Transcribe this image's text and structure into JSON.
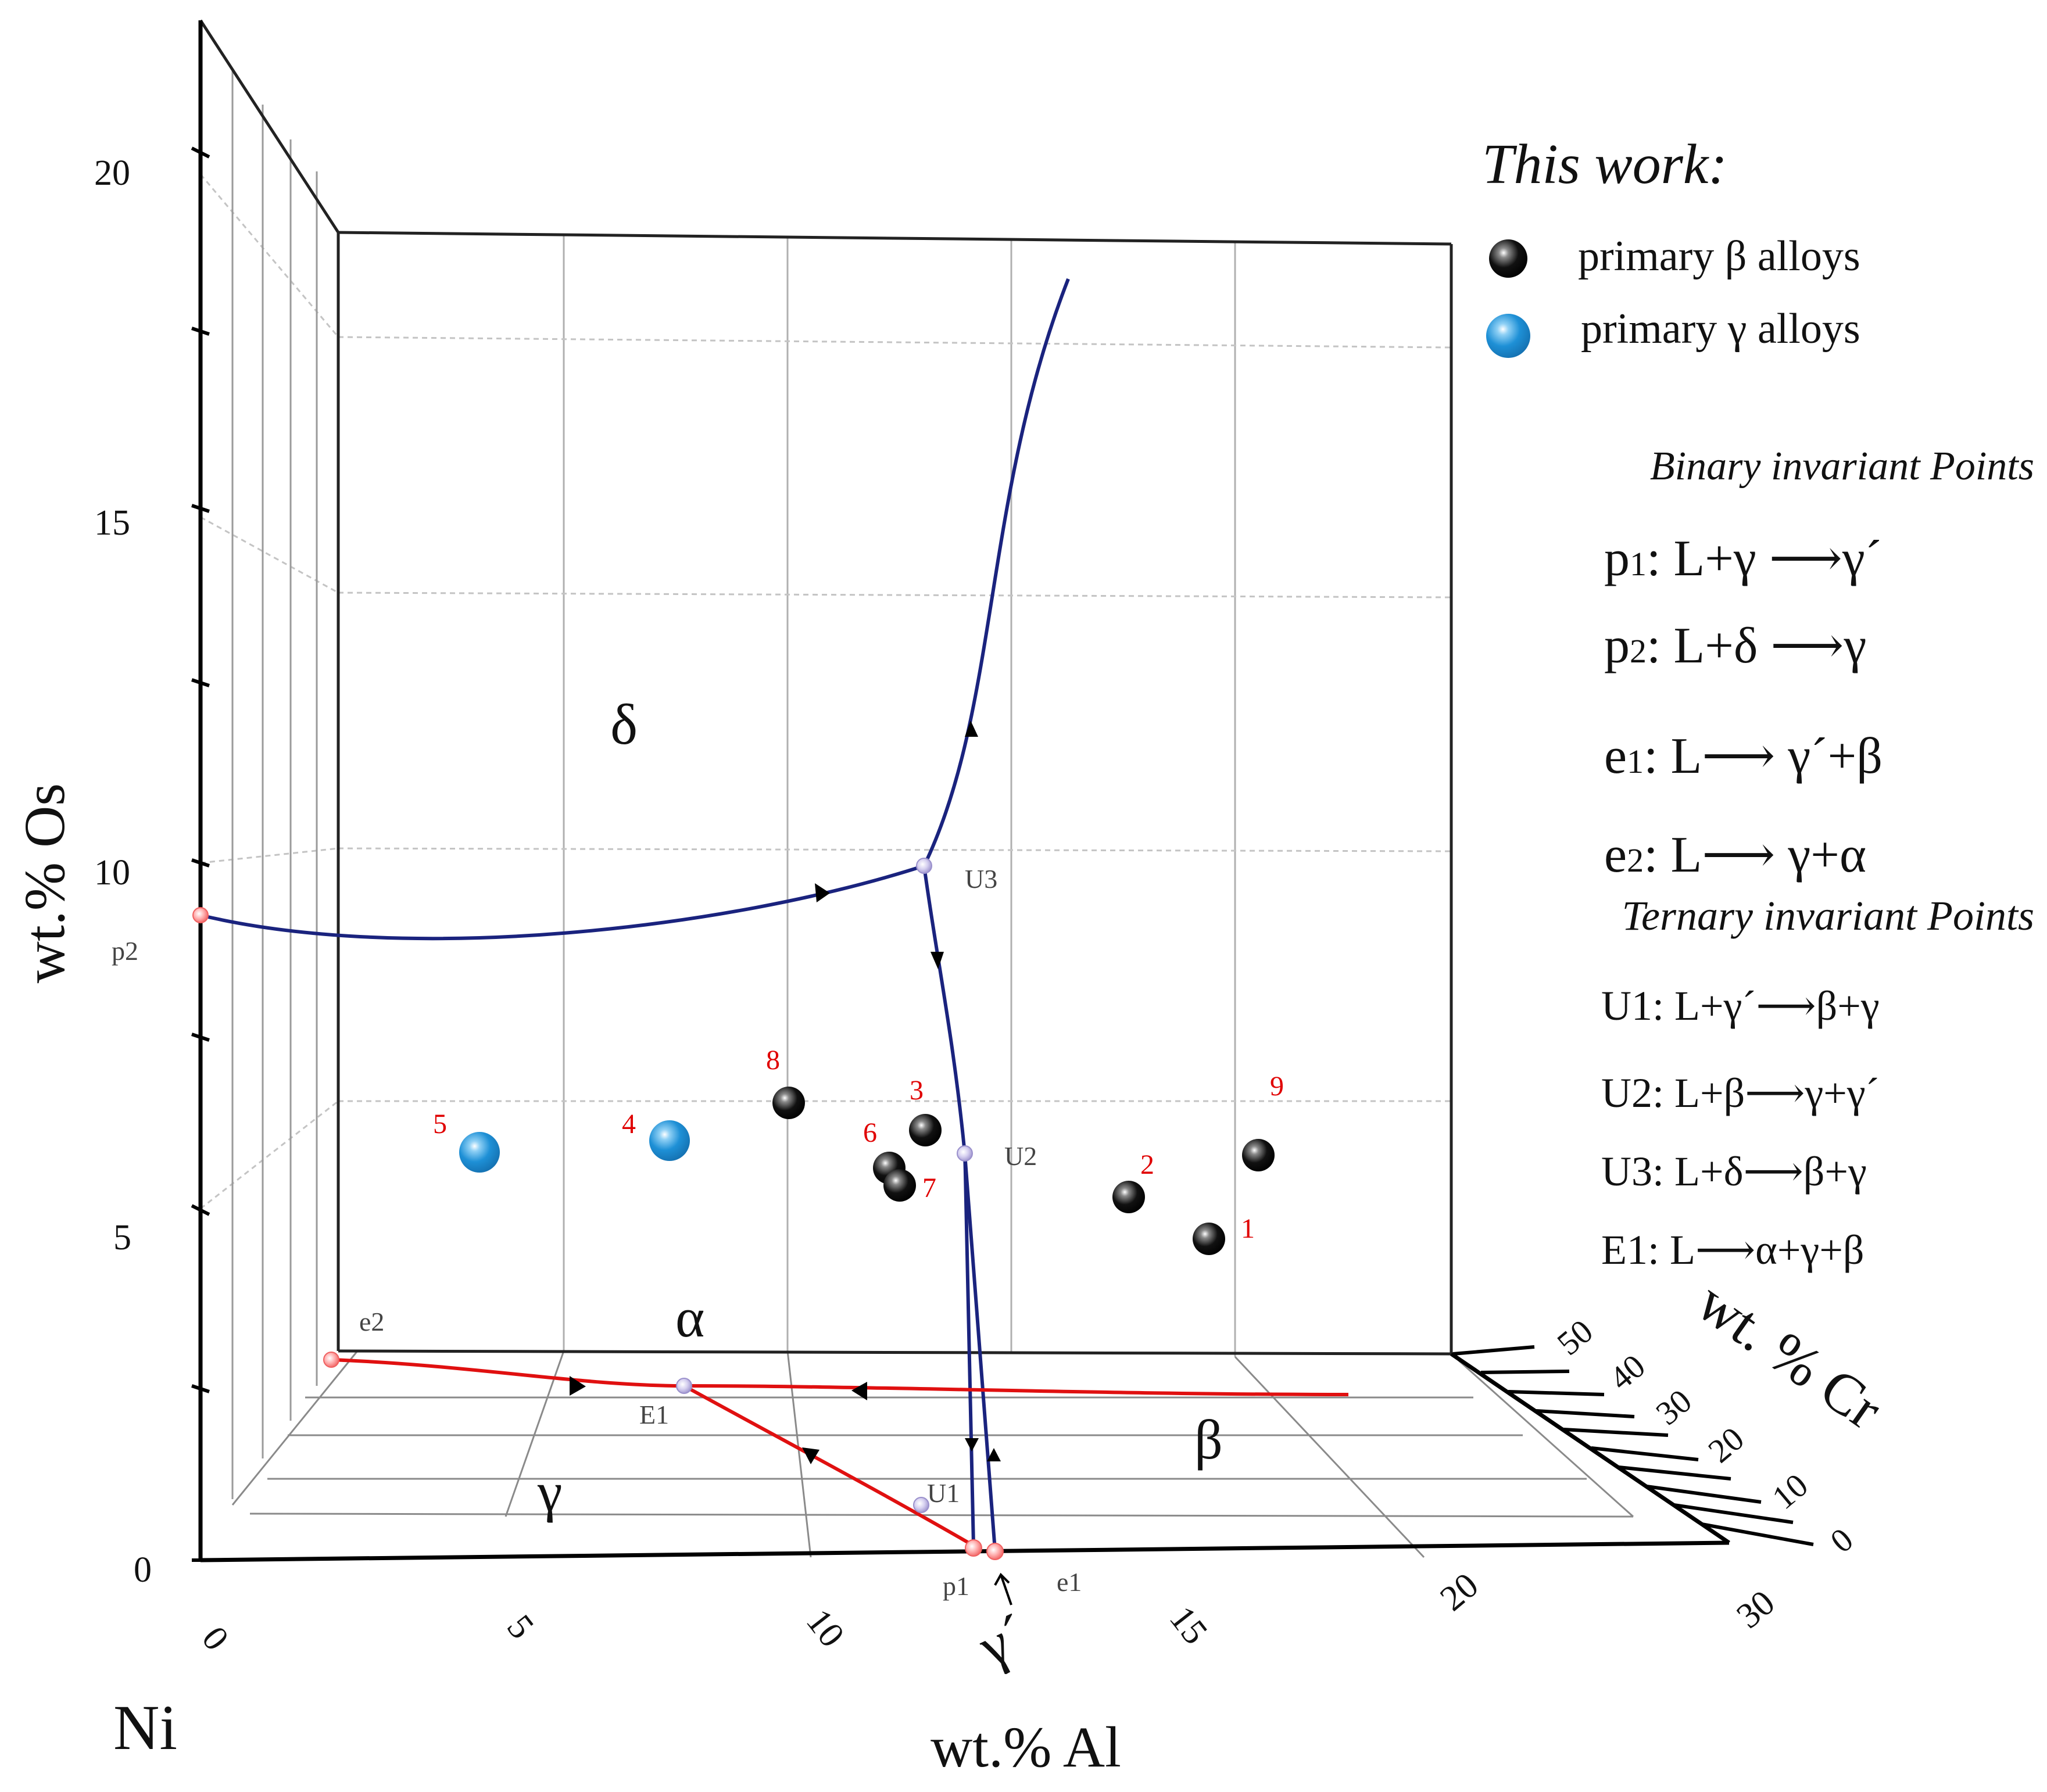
{
  "colors": {
    "axis": "#000000",
    "grid": "#9a9a9a",
    "dash": "#bdbdbd",
    "blue_curve": "#1a237e",
    "red_curve": "#e01010",
    "label_red": "#e00000",
    "label_gray": "#444444",
    "beta_sphere": "#000000",
    "gamma_sphere": "#1e90d6",
    "point_red": "#ff8080",
    "point_lavender": "#b8b0e0"
  },
  "axes": {
    "os": {
      "label": "wt.% Os",
      "ticks": [
        {
          "value": 0,
          "label": "0"
        },
        {
          "value": 5,
          "label": "5"
        },
        {
          "value": 10,
          "label": "10"
        },
        {
          "value": 15,
          "label": "15"
        },
        {
          "value": 20,
          "label": "20"
        }
      ]
    },
    "al": {
      "label": "wt.% Al",
      "ticks": [
        {
          "value": 0,
          "label": "0"
        },
        {
          "value": 5,
          "label": "5"
        },
        {
          "value": 10,
          "label": "10"
        },
        {
          "value": 15,
          "label": "15"
        },
        {
          "value": 20,
          "label": "20"
        },
        {
          "value": 30,
          "label": "30"
        }
      ]
    },
    "cr": {
      "label": "wt. % Cr",
      "ticks": [
        {
          "value": 0,
          "label": "0"
        },
        {
          "value": 10,
          "label": "10"
        },
        {
          "value": 20,
          "label": "20"
        },
        {
          "value": 30,
          "label": "30"
        },
        {
          "value": 40,
          "label": "40"
        },
        {
          "value": 50,
          "label": "50"
        }
      ]
    },
    "origin_label": "Ni"
  },
  "regions": {
    "delta": "δ",
    "alpha": "α",
    "gamma": "γ",
    "beta": "β",
    "gamma_prime": "γ´"
  },
  "invariant_points": {
    "p1": "p1",
    "p2": "p2",
    "e1": "e1",
    "e2": "e2",
    "U1": "U1",
    "U2": "U2",
    "U3": "U3",
    "E1": "E1"
  },
  "alloys": [
    {
      "id": "1",
      "phase": "beta"
    },
    {
      "id": "2",
      "phase": "beta"
    },
    {
      "id": "3",
      "phase": "beta"
    },
    {
      "id": "4",
      "phase": "gamma"
    },
    {
      "id": "5",
      "phase": "gamma"
    },
    {
      "id": "6",
      "phase": "beta"
    },
    {
      "id": "7",
      "phase": "beta"
    },
    {
      "id": "8",
      "phase": "beta"
    },
    {
      "id": "9",
      "phase": "beta"
    }
  ],
  "legend": {
    "heading": "This work:",
    "items": [
      {
        "label": "primary β alloys",
        "color": "#000000"
      },
      {
        "label": "primary γ alloys",
        "color": "#1e90d6"
      }
    ],
    "binary_heading": "Binary invariant Points",
    "binary": [
      {
        "sym": "p",
        "sub": "1",
        "rxn": ": L+γ ⟶γ´"
      },
      {
        "sym": "p",
        "sub": "2",
        "rxn": ": L+δ ⟶γ"
      },
      {
        "sym": "e",
        "sub": "1",
        "rxn": ": L⟶ γ´+β"
      },
      {
        "sym": "e",
        "sub": "2",
        "rxn": ": L⟶  γ+α"
      }
    ],
    "ternary_heading": "Ternary invariant Points",
    "ternary": [
      "U1: L+γ´⟶β+γ",
      "U2: L+β⟶γ+γ´",
      "U3: L+δ⟶β+γ",
      "E1: L⟶α+γ+β"
    ]
  }
}
